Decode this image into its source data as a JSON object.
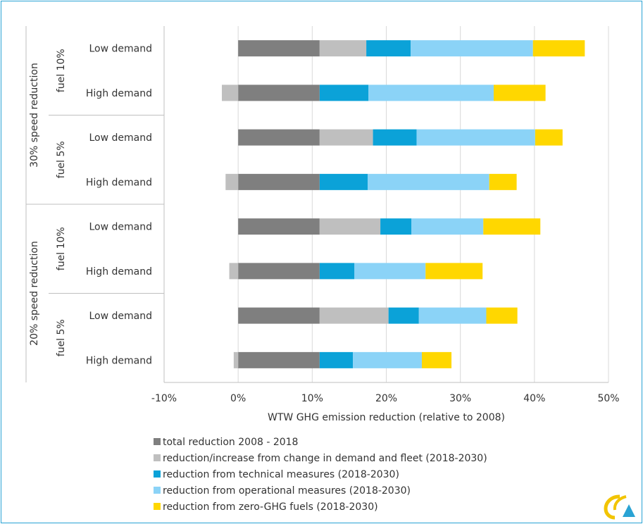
{
  "chart_data": {
    "type": "bar",
    "orientation": "horizontal",
    "stacked": true,
    "xlabel": "WTW GHG emission reduction (relative to 2008)",
    "xlim": [
      -10,
      50
    ],
    "xticks": [
      "-10%",
      "0%",
      "10%",
      "20%",
      "30%",
      "40%",
      "50%"
    ],
    "xtick_values": [
      -10,
      0,
      10,
      20,
      30,
      40,
      50
    ],
    "grid": "vertical",
    "legend_position": "bottom",
    "groups": [
      {
        "label": "30% speed reduction",
        "subgroups": [
          {
            "label": "fuel 10%",
            "categories": [
              "Low demand",
              "High demand"
            ]
          },
          {
            "label": "fuel 5%",
            "categories": [
              "Low demand",
              "High demand"
            ]
          }
        ]
      },
      {
        "label": "20% speed reduction",
        "subgroups": [
          {
            "label": "fuel 10%",
            "categories": [
              "Low demand",
              "High demand"
            ]
          },
          {
            "label": "fuel 5%",
            "categories": [
              "Low demand",
              "High demand"
            ]
          }
        ]
      }
    ],
    "categories": [
      "Low demand",
      "High demand",
      "Low demand",
      "High demand",
      "Low demand",
      "High demand",
      "Low demand",
      "High demand"
    ],
    "series": [
      {
        "name": "total reduction 2008 - 2018",
        "color": "#7f7f7f",
        "values": [
          11.0,
          11.0,
          11.0,
          11.0,
          11.0,
          11.0,
          11.0,
          11.0
        ]
      },
      {
        "name": "reduction/increase from change in demand and fleet (2018-2030)",
        "color": "#bfbfbf",
        "values": [
          6.3,
          -2.2,
          7.2,
          -1.7,
          8.2,
          -1.2,
          9.3,
          -0.6
        ]
      },
      {
        "name": "reduction from technical measures (2018-2030)",
        "color": "#0ba2d8",
        "values": [
          6.0,
          6.6,
          5.9,
          6.5,
          4.2,
          4.7,
          4.1,
          4.5
        ]
      },
      {
        "name": "reduction from operational measures (2018-2030)",
        "color": "#8bd3f7",
        "values": [
          16.5,
          16.9,
          16.0,
          16.4,
          9.7,
          9.6,
          9.1,
          9.3
        ]
      },
      {
        "name": "reduction from zero-GHG fuels  (2018-2030)",
        "color": "#ffd700",
        "values": [
          7.0,
          7.0,
          3.7,
          3.7,
          7.7,
          7.7,
          4.2,
          4.0
        ]
      }
    ]
  },
  "legend_entries": [
    "total reduction 2008 - 2018",
    "reduction/increase from change in demand and fleet (2018-2030)",
    "reduction from technical measures (2018-2030)",
    "reduction from operational measures (2018-2030)",
    "reduction from zero-GHG fuels  (2018-2030)"
  ],
  "logo": {
    "icon": "publisher-logo-icon",
    "colors": [
      "#f2c400",
      "#2aa3d4"
    ]
  }
}
